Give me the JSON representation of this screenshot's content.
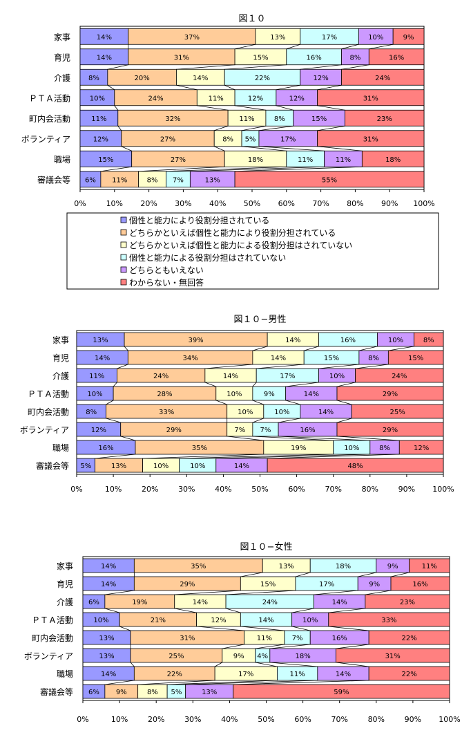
{
  "chart_data": [
    {
      "type": "bar",
      "stacked": true,
      "orientation": "horizontal",
      "title": "図１０",
      "categories": [
        "家事",
        "育児",
        "介護",
        "ＰＴＡ活動",
        "町内会活動",
        "ボランティア",
        "職場",
        "審議会等"
      ],
      "series": [
        {
          "name": "個性と能力により役割分担されている",
          "values": [
            14,
            14,
            8,
            10,
            11,
            12,
            15,
            6
          ]
        },
        {
          "name": "どちらかといえば個性と能力により役割分担されている",
          "values": [
            37,
            31,
            20,
            24,
            32,
            27,
            27,
            11
          ]
        },
        {
          "name": "どちらかといえば個性と能力による役割分担はされていない",
          "values": [
            13,
            15,
            14,
            11,
            11,
            8,
            18,
            8
          ]
        },
        {
          "name": "個性と能力による役割分担はされていない",
          "values": [
            17,
            16,
            22,
            12,
            8,
            5,
            11,
            7
          ]
        },
        {
          "name": "どちらともいえない",
          "values": [
            10,
            8,
            12,
            12,
            15,
            17,
            11,
            13
          ]
        },
        {
          "name": "わからない・無回答",
          "values": [
            9,
            16,
            24,
            31,
            23,
            31,
            18,
            55
          ]
        }
      ],
      "xlim": [
        0,
        100
      ],
      "tick_labels": [
        "0%",
        "10%",
        "20%",
        "30%",
        "40%",
        "50%",
        "60%",
        "70%",
        "80%",
        "90%",
        "100%"
      ],
      "legend": "below"
    },
    {
      "type": "bar",
      "stacked": true,
      "orientation": "horizontal",
      "title": "図１０−男性",
      "categories": [
        "家事",
        "育児",
        "介護",
        "ＰＴＡ活動",
        "町内会活動",
        "ボランティア",
        "職場",
        "審議会等"
      ],
      "series": [
        {
          "name": "個性と能力により役割分担されている",
          "values": [
            13,
            14,
            11,
            10,
            8,
            12,
            16,
            5
          ]
        },
        {
          "name": "どちらかといえば個性と能力により役割分担されている",
          "values": [
            39,
            34,
            24,
            28,
            33,
            29,
            35,
            13
          ]
        },
        {
          "name": "どちらかといえば個性と能力による役割分担はされていない",
          "values": [
            14,
            14,
            14,
            10,
            10,
            7,
            19,
            10
          ]
        },
        {
          "name": "個性と能力による役割分担はされていない",
          "values": [
            16,
            15,
            17,
            9,
            10,
            7,
            10,
            10
          ]
        },
        {
          "name": "どちらともいえない",
          "values": [
            10,
            8,
            10,
            14,
            14,
            16,
            8,
            14
          ]
        },
        {
          "name": "わからない・無回答",
          "values": [
            8,
            15,
            24,
            29,
            25,
            29,
            12,
            48
          ]
        }
      ],
      "xlim": [
        0,
        100
      ],
      "tick_labels": [
        "0%",
        "10%",
        "20%",
        "30%",
        "40%",
        "50%",
        "60%",
        "70%",
        "80%",
        "90%",
        "100%"
      ]
    },
    {
      "type": "bar",
      "stacked": true,
      "orientation": "horizontal",
      "title": "図１０−女性",
      "categories": [
        "家事",
        "育児",
        "介護",
        "ＰＴＡ活動",
        "町内会活動",
        "ボランティア",
        "職場",
        "審議会等"
      ],
      "series": [
        {
          "name": "個性と能力により役割分担されている",
          "values": [
            14,
            14,
            6,
            10,
            13,
            13,
            14,
            6
          ]
        },
        {
          "name": "どちらかといえば個性と能力により役割分担されている",
          "values": [
            35,
            29,
            19,
            21,
            31,
            25,
            22,
            9
          ]
        },
        {
          "name": "どちらかといえば個性と能力による役割分担はされていない",
          "values": [
            13,
            15,
            14,
            12,
            11,
            9,
            17,
            8
          ]
        },
        {
          "name": "個性と能力による役割分担はされていない",
          "values": [
            18,
            17,
            24,
            14,
            7,
            4,
            11,
            5
          ]
        },
        {
          "name": "どちらともいえない",
          "values": [
            9,
            9,
            14,
            10,
            16,
            18,
            14,
            13
          ]
        },
        {
          "name": "わからない・無回答",
          "values": [
            11,
            16,
            23,
            33,
            22,
            31,
            22,
            59
          ]
        }
      ],
      "xlim": [
        0,
        100
      ],
      "tick_labels": [
        "0%",
        "10%",
        "20%",
        "30%",
        "40%",
        "50%",
        "60%",
        "70%",
        "80%",
        "90%",
        "100%"
      ]
    }
  ],
  "colors": {
    "series": [
      "#9999ff",
      "#ffcc99",
      "#ffffcc",
      "#ccffff",
      "#cc99ff",
      "#ff8080"
    ]
  }
}
